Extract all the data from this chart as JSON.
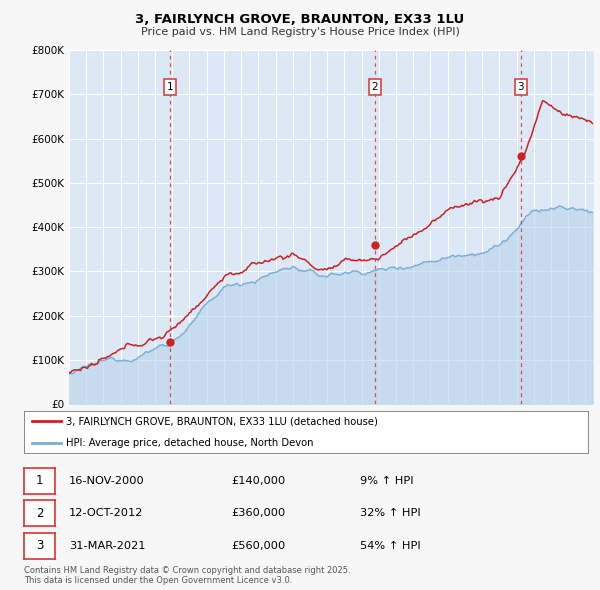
{
  "title_line1": "3, FAIRLYNCH GROVE, BRAUNTON, EX33 1LU",
  "title_line2": "Price paid vs. HM Land Registry's House Price Index (HPI)",
  "background_color": "#f7f7f7",
  "plot_background": "#dce8f5",
  "grid_color": "#ffffff",
  "hpi_color": "#7aadd4",
  "hpi_fill_color": "#b8d4ea",
  "price_color": "#cc2222",
  "sale_marker_color": "#cc2222",
  "vline_color": "#dd3333",
  "ylim": [
    0,
    800000
  ],
  "yticks": [
    0,
    100000,
    200000,
    300000,
    400000,
    500000,
    600000,
    700000,
    800000
  ],
  "ytick_labels": [
    "£0",
    "£100K",
    "£200K",
    "£300K",
    "£400K",
    "£500K",
    "£600K",
    "£700K",
    "£800K"
  ],
  "legend1_label": "3, FAIRLYNCH GROVE, BRAUNTON, EX33 1LU (detached house)",
  "legend2_label": "HPI: Average price, detached house, North Devon",
  "sale1_date": 2000.88,
  "sale1_price": 140000,
  "sale1_label": "1",
  "sale1_date_str": "16-NOV-2000",
  "sale1_price_str": "£140,000",
  "sale1_pct": "9% ↑ HPI",
  "sale2_date": 2012.78,
  "sale2_price": 360000,
  "sale2_label": "2",
  "sale2_date_str": "12-OCT-2012",
  "sale2_price_str": "£360,000",
  "sale2_pct": "32% ↑ HPI",
  "sale3_date": 2021.25,
  "sale3_price": 560000,
  "sale3_label": "3",
  "sale3_date_str": "31-MAR-2021",
  "sale3_price_str": "£560,000",
  "sale3_pct": "54% ↑ HPI",
  "footer_line1": "Contains HM Land Registry data © Crown copyright and database right 2025.",
  "footer_line2": "This data is licensed under the Open Government Licence v3.0.",
  "xmin": 1995.0,
  "xmax": 2025.5
}
